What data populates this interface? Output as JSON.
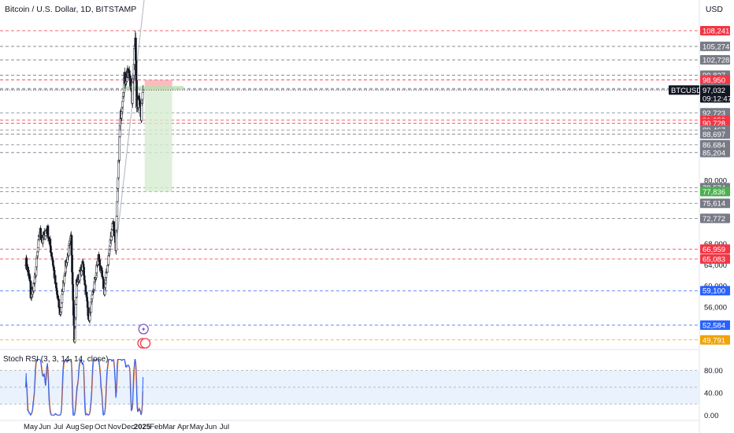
{
  "header": {
    "title": "Bitcoin / U.S. Dollar, 1D, BITSTAMP",
    "currency": "USD"
  },
  "rsi_panel": {
    "label": "Stoch RSI (3, 3, 14, 14, close)"
  },
  "colors": {
    "up": "#131722",
    "down": "#131722",
    "red_level": "#f23645",
    "gray_level": "#787b86",
    "blue_level": "#2962ff",
    "orange_level": "#f0a30a",
    "k_line": "#2962ff",
    "d_line": "#ff6d00",
    "stop_zone": "#f7b6b9",
    "target_zone": "#d6ecd0"
  },
  "chart_data": [
    {
      "type": "candlestick",
      "symbol": "Bitcoin / U.S. Dollar",
      "interval": "1D",
      "exchange": "BITSTAMP",
      "x_labels": [
        "May",
        "Jun",
        "Jul",
        "Aug",
        "Sep",
        "Oct",
        "Nov",
        "Dec",
        "2025",
        "Feb",
        "Mar",
        "Apr",
        "May",
        "Jun",
        "Jul"
      ],
      "y_ticks": [
        56000,
        60000,
        64000,
        68000,
        80000
      ],
      "ylim": [
        48000,
        112000
      ],
      "current_price": {
        "symbol": "BTCUSD",
        "price": "97,032",
        "countdown": "09:12:47"
      },
      "price_levels": [
        {
          "value": 108241,
          "label": "108,241",
          "color": "red"
        },
        {
          "value": 105274,
          "label": "105,274",
          "color": "gray"
        },
        {
          "value": 102728,
          "label": "102,728",
          "color": "gray"
        },
        {
          "value": 99827,
          "label": "99,827",
          "color": "gray"
        },
        {
          "value": 98950,
          "label": "98,950",
          "color": "red"
        },
        {
          "value": 97341,
          "label": "97,341",
          "color": "gray"
        },
        {
          "value": 97105,
          "label": "97,105",
          "color": "gray"
        },
        {
          "value": 92723,
          "label": "92,723",
          "color": "gray"
        },
        {
          "value": 91353,
          "label": "91,353",
          "color": "red"
        },
        {
          "value": 90728,
          "label": "90,728",
          "color": "red"
        },
        {
          "value": 89467,
          "label": "89,467",
          "color": "gray"
        },
        {
          "value": 88697,
          "label": "88,697",
          "color": "gray"
        },
        {
          "value": 86684,
          "label": "86,684",
          "color": "gray"
        },
        {
          "value": 85204,
          "label": "85,204",
          "color": "gray"
        },
        {
          "value": 78574,
          "label": "78,574",
          "color": "gray"
        },
        {
          "value": 77836,
          "label": "77,836",
          "color": "green"
        },
        {
          "value": 75614,
          "label": "75,614",
          "color": "gray"
        },
        {
          "value": 72772,
          "label": "72,772",
          "color": "gray"
        },
        {
          "value": 66959,
          "label": "66,959",
          "color": "red"
        },
        {
          "value": 65083,
          "label": "65,083",
          "color": "red"
        },
        {
          "value": 59100,
          "label": "59,100",
          "color": "blue"
        },
        {
          "value": 52584,
          "label": "52,584",
          "color": "blue"
        },
        {
          "value": 49791,
          "label": "49,791",
          "color": "orange"
        }
      ],
      "position": {
        "direction": "short",
        "entry": 97032,
        "stop": 98950,
        "target": 77836
      },
      "series": [
        {
          "name": "BTCUSD",
          "anchors": [
            [
              "2024-04-20",
              64900
            ],
            [
              "2024-04-30",
              60500
            ],
            [
              "2024-05-01",
              57500
            ],
            [
              "2024-05-10",
              61000
            ],
            [
              "2024-05-21",
              70500
            ],
            [
              "2024-05-27",
              68500
            ],
            [
              "2024-06-06",
              71000
            ],
            [
              "2024-06-18",
              65000
            ],
            [
              "2024-06-24",
              60500
            ],
            [
              "2024-07-05",
              54500
            ],
            [
              "2024-07-15",
              63000
            ],
            [
              "2024-07-29",
              69000
            ],
            [
              "2024-08-05",
              49800
            ],
            [
              "2024-08-10",
              60500
            ],
            [
              "2024-08-24",
              64000
            ],
            [
              "2024-09-06",
              53500
            ],
            [
              "2024-09-27",
              65500
            ],
            [
              "2024-10-10",
              59000
            ],
            [
              "2024-10-29",
              72500
            ],
            [
              "2024-11-04",
              67500
            ],
            [
              "2024-11-13",
              90000
            ],
            [
              "2024-11-22",
              99000
            ],
            [
              "2024-12-05",
              100000
            ],
            [
              "2024-12-10",
              95500
            ],
            [
              "2024-12-17",
              108241
            ],
            [
              "2024-12-20",
              93500
            ],
            [
              "2024-12-26",
              96500
            ],
            [
              "2024-12-30",
              92000
            ],
            [
              "2025-01-01",
              94500
            ],
            [
              "2025-01-03",
              97032
            ]
          ]
        }
      ]
    },
    {
      "type": "line",
      "title": "Stoch RSI (3, 3, 14, 14, close)",
      "y_ticks": [
        0,
        40,
        80
      ],
      "ylim": [
        -8,
        112
      ],
      "band": [
        20,
        80
      ],
      "series": [
        {
          "name": "K",
          "color": "#2962ff"
        },
        {
          "name": "D",
          "color": "#ff6d00"
        }
      ]
    }
  ]
}
